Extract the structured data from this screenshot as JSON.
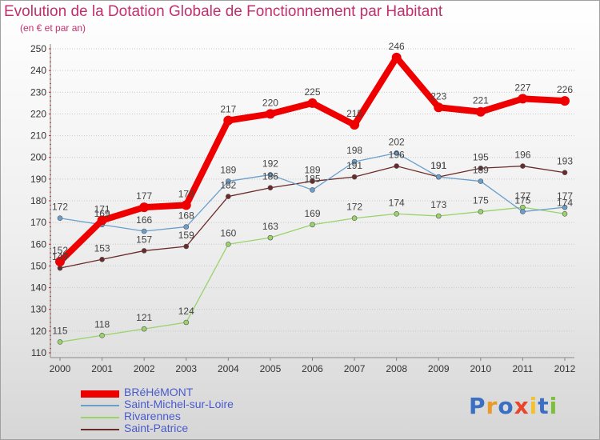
{
  "title": "Evolution de la Dotation Globale de Fonctionnement par Habitant",
  "subtitle": "(en € et par an)",
  "logo": {
    "letters": [
      "P",
      "r",
      "o",
      "x",
      "i",
      "t",
      "i"
    ],
    "colors": [
      "#3a6fc4",
      "#e89a2a",
      "#3a6fc4",
      "#e8452a",
      "#f2c12e",
      "#3a6fc4",
      "#7cbf3a"
    ]
  },
  "chart_data": {
    "type": "line",
    "title": "Evolution de la Dotation Globale de Fonctionnement par Habitant",
    "subtitle": "(en € et par an)",
    "xlabel": "",
    "ylabel": "",
    "x": [
      "2000",
      "2001",
      "2002",
      "2003",
      "2004",
      "2005",
      "2006",
      "2007",
      "2008",
      "2009",
      "2010",
      "2011",
      "2012"
    ],
    "ylim": [
      110,
      250
    ],
    "yticks": [
      110,
      120,
      130,
      140,
      150,
      160,
      170,
      180,
      190,
      200,
      210,
      220,
      230,
      240,
      250
    ],
    "grid": "horizontal-dotted",
    "legend_position": "bottom-left",
    "series": [
      {
        "name": "BRéHéMONT",
        "color": "#ee0000",
        "values": [
          152,
          171,
          177,
          178,
          217,
          220,
          225,
          215,
          246,
          223,
          221,
          227,
          226
        ]
      },
      {
        "name": "Saint-Michel-sur-Loire",
        "color": "#6a9fcc",
        "values": [
          172,
          169,
          166,
          168,
          189,
          192,
          185,
          198,
          202,
          191,
          189,
          175,
          177
        ]
      },
      {
        "name": "Rivarennes",
        "color": "#99d36a",
        "values": [
          115,
          118,
          121,
          124,
          160,
          163,
          169,
          172,
          174,
          173,
          175,
          177,
          174
        ]
      },
      {
        "name": "Saint-Patrice",
        "color": "#6b2a2a",
        "values": [
          149,
          153,
          157,
          159,
          182,
          186,
          189,
          191,
          196,
          191,
          195,
          196,
          193
        ]
      }
    ]
  }
}
